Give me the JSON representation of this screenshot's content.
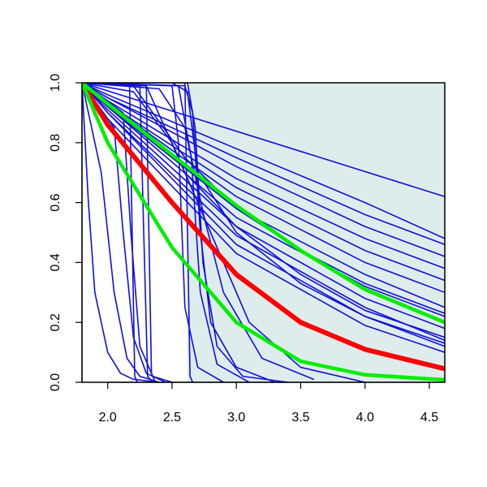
{
  "chart_data": {
    "type": "line",
    "title": "",
    "xlabel": "",
    "ylabel": "",
    "xlim": [
      1.8,
      4.62
    ],
    "ylim": [
      0,
      1
    ],
    "x_ticks": [
      2.0,
      2.5,
      3.0,
      3.5,
      4.0,
      4.5
    ],
    "x_tick_labels": [
      "2.0",
      "2.5",
      "3.0",
      "3.5",
      "4.0",
      "4.5"
    ],
    "y_ticks": [
      0.0,
      0.2,
      0.4,
      0.6,
      0.8,
      1.0
    ],
    "y_tick_labels": [
      "0.0",
      "0.2",
      "0.4",
      "0.6",
      "0.8",
      "1.0"
    ],
    "grid": false,
    "legend": "none",
    "shaded_region": {
      "x_range": [
        2.62,
        4.62
      ],
      "y_range": [
        0,
        1
      ],
      "color": "#dfecec"
    },
    "colors": {
      "curves": "#1010dd",
      "main": "#ff0000",
      "bounds": "#00ee00"
    },
    "series": [
      {
        "x": [
          1.8,
          2.0,
          2.5,
          3.0,
          3.5,
          4.0,
          4.62
        ],
        "values": [
          1.0,
          0.86,
          0.6,
          0.36,
          0.2,
          0.11,
          0.045
        ],
        "role": "main"
      },
      {
        "x": [
          1.8,
          2.0,
          2.5,
          3.0,
          3.5,
          4.0,
          4.62
        ],
        "values": [
          1.0,
          0.93,
          0.76,
          0.59,
          0.44,
          0.31,
          0.2
        ],
        "role": "bound"
      },
      {
        "x": [
          1.8,
          2.0,
          2.5,
          3.0,
          3.5,
          4.0,
          4.62
        ],
        "values": [
          1.0,
          0.8,
          0.45,
          0.2,
          0.07,
          0.025,
          0.008
        ],
        "role": "bound"
      },
      {
        "x": [
          1.8,
          4.62
        ],
        "values": [
          1.0,
          0.62
        ],
        "role": "curve"
      },
      {
        "x": [
          1.8,
          2.0,
          3.0,
          4.0,
          4.62
        ],
        "values": [
          1.0,
          0.96,
          0.78,
          0.6,
          0.48
        ],
        "role": "curve"
      },
      {
        "x": [
          1.8,
          2.0,
          3.0,
          4.0,
          4.62
        ],
        "values": [
          1.0,
          0.95,
          0.75,
          0.56,
          0.46
        ],
        "role": "curve"
      },
      {
        "x": [
          1.8,
          2.0,
          3.0,
          4.0,
          4.62
        ],
        "values": [
          1.0,
          0.95,
          0.72,
          0.52,
          0.42
        ],
        "role": "curve"
      },
      {
        "x": [
          1.8,
          2.0,
          3.0,
          4.0,
          4.62
        ],
        "values": [
          1.0,
          0.94,
          0.68,
          0.48,
          0.38
        ],
        "role": "curve"
      },
      {
        "x": [
          1.8,
          2.0,
          3.0,
          4.0,
          4.62
        ],
        "values": [
          1.0,
          0.93,
          0.65,
          0.44,
          0.34
        ],
        "role": "curve"
      },
      {
        "x": [
          1.8,
          2.0,
          3.0,
          4.0,
          4.62
        ],
        "values": [
          1.0,
          0.93,
          0.62,
          0.4,
          0.3
        ],
        "role": "curve"
      },
      {
        "x": [
          1.8,
          2.0,
          3.0,
          4.0,
          4.62
        ],
        "values": [
          1.0,
          0.92,
          0.58,
          0.36,
          0.25
        ],
        "role": "curve"
      },
      {
        "x": [
          1.8,
          2.0,
          3.0,
          4.0,
          4.62
        ],
        "values": [
          1.0,
          0.92,
          0.55,
          0.32,
          0.22
        ],
        "role": "curve"
      },
      {
        "x": [
          1.8,
          2.0,
          3.0,
          4.0,
          4.62
        ],
        "values": [
          1.0,
          0.91,
          0.52,
          0.28,
          0.18
        ],
        "role": "curve"
      },
      {
        "x": [
          1.8,
          2.0,
          3.0,
          4.0,
          4.62
        ],
        "values": [
          1.0,
          0.9,
          0.49,
          0.25,
          0.14
        ],
        "role": "curve"
      },
      {
        "x": [
          1.8,
          2.0,
          3.0,
          4.0,
          4.62
        ],
        "values": [
          1.0,
          0.9,
          0.46,
          0.22,
          0.12
        ],
        "role": "curve"
      },
      {
        "x": [
          1.8,
          2.0,
          3.0,
          4.0,
          4.62
        ],
        "values": [
          1.0,
          0.88,
          0.43,
          0.19,
          0.1
        ],
        "role": "curve"
      },
      {
        "x": [
          1.8,
          2.2,
          2.6,
          3.0,
          3.5,
          4.0,
          4.62
        ],
        "values": [
          1.0,
          0.99,
          0.75,
          0.58,
          0.44,
          0.33,
          0.23
        ],
        "role": "curve"
      },
      {
        "x": [
          1.8,
          2.3,
          2.6,
          3.0,
          3.5,
          4.0,
          4.62
        ],
        "values": [
          1.0,
          0.99,
          0.7,
          0.52,
          0.36,
          0.24,
          0.15
        ],
        "role": "curve"
      },
      {
        "x": [
          1.8,
          2.5,
          2.62,
          2.7,
          3.0,
          3.5,
          4.0,
          4.62
        ],
        "values": [
          1.0,
          1.0,
          0.97,
          0.7,
          0.5,
          0.33,
          0.22,
          0.13
        ],
        "role": "curve"
      },
      {
        "x": [
          1.8,
          1.85,
          1.9,
          2.0,
          2.1,
          2.2,
          2.4
        ],
        "values": [
          1.0,
          0.6,
          0.3,
          0.1,
          0.03,
          0.01,
          0.0
        ],
        "role": "curve"
      },
      {
        "x": [
          1.8,
          1.95,
          2.05,
          2.15,
          2.25,
          2.4
        ],
        "values": [
          1.0,
          0.7,
          0.3,
          0.08,
          0.02,
          0.0
        ],
        "role": "curve"
      },
      {
        "x": [
          1.8,
          2.05,
          2.12,
          2.2,
          2.3,
          2.45
        ],
        "values": [
          1.0,
          0.85,
          0.5,
          0.15,
          0.03,
          0.0
        ],
        "role": "curve"
      },
      {
        "x": [
          1.8,
          2.12,
          2.18,
          2.25,
          2.35,
          2.5
        ],
        "values": [
          1.0,
          0.9,
          0.5,
          0.12,
          0.02,
          0.0
        ],
        "role": "curve"
      },
      {
        "x": [
          1.8,
          2.17,
          2.19,
          2.21,
          2.23
        ],
        "values": [
          1.0,
          0.99,
          0.5,
          0.02,
          0.0
        ],
        "role": "curve"
      },
      {
        "x": [
          1.8,
          2.25,
          2.28,
          2.31,
          2.35
        ],
        "values": [
          1.0,
          0.99,
          0.5,
          0.02,
          0.0
        ],
        "role": "curve"
      },
      {
        "x": [
          1.8,
          2.3,
          2.32,
          2.34,
          2.37
        ],
        "values": [
          1.0,
          0.99,
          0.5,
          0.03,
          0.0
        ],
        "role": "curve"
      },
      {
        "x": [
          1.8,
          2.6,
          2.62,
          2.64,
          2.66
        ],
        "values": [
          1.0,
          1.0,
          0.5,
          0.02,
          0.0
        ],
        "role": "curve"
      },
      {
        "x": [
          1.8,
          2.5,
          2.55,
          2.6,
          2.7,
          2.9
        ],
        "values": [
          1.0,
          0.99,
          0.8,
          0.25,
          0.05,
          0.0
        ],
        "role": "curve"
      },
      {
        "x": [
          1.8,
          2.55,
          2.65,
          2.72,
          2.85,
          3.1
        ],
        "values": [
          1.0,
          0.99,
          0.75,
          0.3,
          0.06,
          0.0
        ],
        "role": "curve"
      },
      {
        "x": [
          1.8,
          2.62,
          2.68,
          2.74,
          2.85,
          3.05,
          3.4
        ],
        "values": [
          1.0,
          1.0,
          0.85,
          0.4,
          0.12,
          0.02,
          0.0
        ],
        "role": "curve"
      },
      {
        "x": [
          1.8,
          2.6,
          2.66,
          2.72,
          2.8,
          3.0,
          3.3
        ],
        "values": [
          1.0,
          0.99,
          0.9,
          0.5,
          0.2,
          0.05,
          0.0
        ],
        "role": "curve"
      },
      {
        "x": [
          1.8,
          2.4,
          2.6,
          2.75,
          2.9,
          3.2,
          3.6
        ],
        "values": [
          1.0,
          0.98,
          0.85,
          0.55,
          0.3,
          0.08,
          0.01
        ],
        "role": "curve"
      },
      {
        "x": [
          1.8,
          2.2,
          2.5,
          2.8,
          3.1,
          3.5,
          4.0
        ],
        "values": [
          1.0,
          0.97,
          0.8,
          0.5,
          0.2,
          0.05,
          0.0
        ],
        "role": "curve"
      }
    ]
  }
}
